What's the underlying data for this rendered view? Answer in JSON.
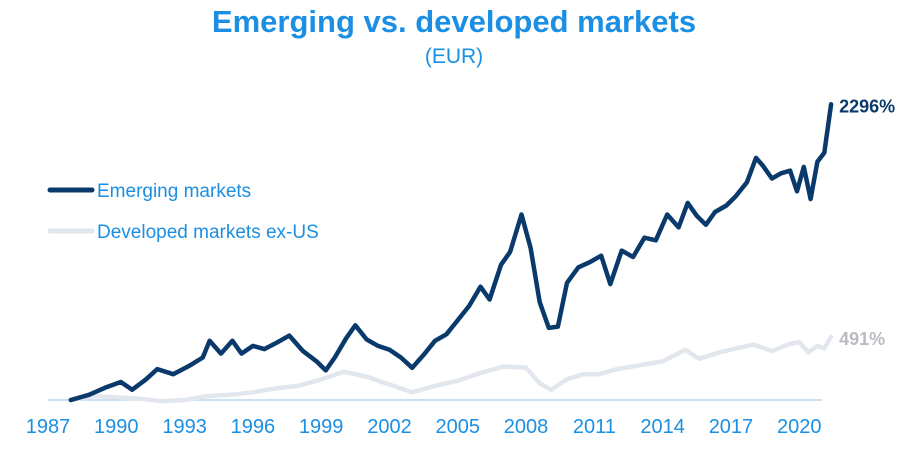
{
  "chart_data": {
    "type": "line",
    "title": "Emerging vs. developed markets",
    "subtitle": "(EUR)",
    "xlabel": "",
    "ylabel": "",
    "x_ticks": [
      "1987",
      "1990",
      "1993",
      "1996",
      "1999",
      "2002",
      "2005",
      "2008",
      "2011",
      "2014",
      "2017",
      "2020"
    ],
    "xlim": [
      1987,
      2021
    ],
    "ylim": [
      0,
      2500
    ],
    "grid": false,
    "legend_position": "left",
    "series": [
      {
        "name": "Emerging markets",
        "color": "#0a3a6b",
        "end_label": "2296%",
        "points": [
          [
            1988.0,
            0
          ],
          [
            1988.8,
            40
          ],
          [
            1989.5,
            95
          ],
          [
            1990.2,
            140
          ],
          [
            1990.7,
            80
          ],
          [
            1991.3,
            160
          ],
          [
            1991.8,
            240
          ],
          [
            1992.5,
            200
          ],
          [
            1993.2,
            265
          ],
          [
            1993.8,
            330
          ],
          [
            1994.1,
            460
          ],
          [
            1994.6,
            360
          ],
          [
            1995.1,
            460
          ],
          [
            1995.5,
            360
          ],
          [
            1996.0,
            420
          ],
          [
            1996.5,
            395
          ],
          [
            1997.0,
            440
          ],
          [
            1997.6,
            500
          ],
          [
            1998.2,
            380
          ],
          [
            1998.8,
            300
          ],
          [
            1999.2,
            230
          ],
          [
            1999.6,
            330
          ],
          [
            2000.1,
            480
          ],
          [
            2000.5,
            580
          ],
          [
            2001.0,
            470
          ],
          [
            2001.5,
            420
          ],
          [
            2002.0,
            390
          ],
          [
            2002.5,
            330
          ],
          [
            2003.0,
            250
          ],
          [
            2003.5,
            350
          ],
          [
            2004.0,
            460
          ],
          [
            2004.5,
            510
          ],
          [
            2005.0,
            620
          ],
          [
            2005.5,
            730
          ],
          [
            2006.0,
            880
          ],
          [
            2006.4,
            780
          ],
          [
            2006.9,
            1050
          ],
          [
            2007.3,
            1150
          ],
          [
            2007.8,
            1440
          ],
          [
            2008.2,
            1180
          ],
          [
            2008.6,
            760
          ],
          [
            2009.0,
            560
          ],
          [
            2009.4,
            570
          ],
          [
            2009.8,
            910
          ],
          [
            2010.3,
            1030
          ],
          [
            2010.8,
            1070
          ],
          [
            2011.3,
            1120
          ],
          [
            2011.7,
            900
          ],
          [
            2012.2,
            1160
          ],
          [
            2012.7,
            1110
          ],
          [
            2013.2,
            1260
          ],
          [
            2013.7,
            1240
          ],
          [
            2014.2,
            1440
          ],
          [
            2014.7,
            1340
          ],
          [
            2015.1,
            1530
          ],
          [
            2015.5,
            1430
          ],
          [
            2015.9,
            1360
          ],
          [
            2016.3,
            1460
          ],
          [
            2016.8,
            1510
          ],
          [
            2017.2,
            1580
          ],
          [
            2017.7,
            1690
          ],
          [
            2018.1,
            1880
          ],
          [
            2018.4,
            1820
          ],
          [
            2018.8,
            1720
          ],
          [
            2019.2,
            1760
          ],
          [
            2019.6,
            1780
          ],
          [
            2019.9,
            1620
          ],
          [
            2020.2,
            1810
          ],
          [
            2020.5,
            1560
          ],
          [
            2020.8,
            1850
          ],
          [
            2021.1,
            1920
          ],
          [
            2021.4,
            2296
          ]
        ]
      },
      {
        "name": "Developed markets ex-US",
        "color": "#e2e7ee",
        "end_label": "491%",
        "points": [
          [
            1988.0,
            0
          ],
          [
            1989.0,
            30
          ],
          [
            1990.0,
            20
          ],
          [
            1991.0,
            10
          ],
          [
            1992.0,
            -10
          ],
          [
            1993.0,
            0
          ],
          [
            1994.0,
            30
          ],
          [
            1995.0,
            40
          ],
          [
            1996.0,
            60
          ],
          [
            1997.0,
            90
          ],
          [
            1998.0,
            110
          ],
          [
            1999.0,
            160
          ],
          [
            2000.0,
            220
          ],
          [
            2001.0,
            180
          ],
          [
            2002.0,
            120
          ],
          [
            2003.0,
            60
          ],
          [
            2004.0,
            110
          ],
          [
            2005.0,
            150
          ],
          [
            2006.0,
            210
          ],
          [
            2007.0,
            260
          ],
          [
            2008.0,
            250
          ],
          [
            2008.6,
            130
          ],
          [
            2009.1,
            80
          ],
          [
            2009.8,
            160
          ],
          [
            2010.5,
            200
          ],
          [
            2011.2,
            200
          ],
          [
            2012.0,
            240
          ],
          [
            2013.0,
            270
          ],
          [
            2014.0,
            300
          ],
          [
            2015.0,
            390
          ],
          [
            2015.6,
            320
          ],
          [
            2016.5,
            370
          ],
          [
            2017.2,
            400
          ],
          [
            2018.0,
            430
          ],
          [
            2018.8,
            380
          ],
          [
            2019.5,
            430
          ],
          [
            2020.0,
            450
          ],
          [
            2020.4,
            370
          ],
          [
            2020.8,
            420
          ],
          [
            2021.1,
            400
          ],
          [
            2021.4,
            491
          ]
        ]
      }
    ]
  }
}
